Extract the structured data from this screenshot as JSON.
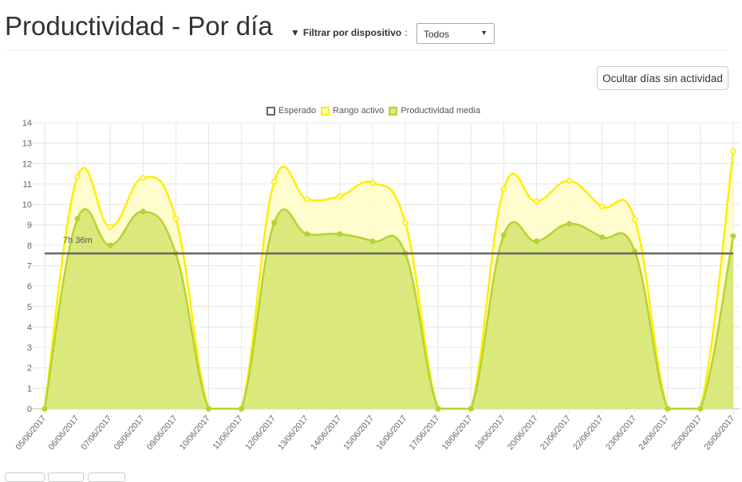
{
  "header": {
    "title": "Productividad - Por día",
    "filter_label": "Filtrar por dispositivo",
    "filter_colon": ":",
    "device_select": "Todos"
  },
  "toolbar": {
    "hide_inactive_label": "Ocultar días sin actividad"
  },
  "colors": {
    "expected": "#666666",
    "range": "#ffee00",
    "range_fill": "#fffcc8",
    "mean": "#b5d334",
    "mean_fill": "#dbe87c"
  },
  "chart_data": {
    "type": "area",
    "title": "",
    "legend": [
      "Esperado",
      "Rango activo",
      "Productividad media"
    ],
    "legend_position": "top",
    "ylim": [
      0,
      14
    ],
    "yticks": [
      0,
      1,
      2,
      3,
      4,
      5,
      6,
      7,
      8,
      9,
      10,
      11,
      12,
      13,
      14
    ],
    "x": [
      "05/06/2017",
      "06/06/2017",
      "07/06/2017",
      "08/06/2017",
      "09/06/2017",
      "10/06/2017",
      "11/06/2017",
      "12/06/2017",
      "13/06/2017",
      "14/06/2017",
      "15/06/2017",
      "16/06/2017",
      "17/06/2017",
      "18/06/2017",
      "19/06/2017",
      "20/06/2017",
      "21/06/2017",
      "22/06/2017",
      "23/06/2017",
      "24/06/2017",
      "25/06/2017",
      "26/06/2017"
    ],
    "series": [
      {
        "name": "Esperado",
        "value": 7.6,
        "annotation": "7h 36m"
      },
      {
        "name": "Rango activo",
        "values": [
          0,
          11.35,
          8.9,
          11.3,
          9.3,
          0,
          0,
          11.1,
          10.25,
          10.4,
          11.05,
          9.1,
          0,
          0,
          10.75,
          10.15,
          11.15,
          9.9,
          9.25,
          0,
          0,
          12.6
        ]
      },
      {
        "name": "Productividad media",
        "values": [
          0,
          9.3,
          8.0,
          9.65,
          7.6,
          0,
          0,
          9.1,
          8.55,
          8.55,
          8.2,
          7.6,
          0,
          0,
          8.5,
          8.2,
          9.05,
          8.4,
          7.7,
          0,
          0,
          8.45
        ]
      }
    ],
    "grid": true
  }
}
